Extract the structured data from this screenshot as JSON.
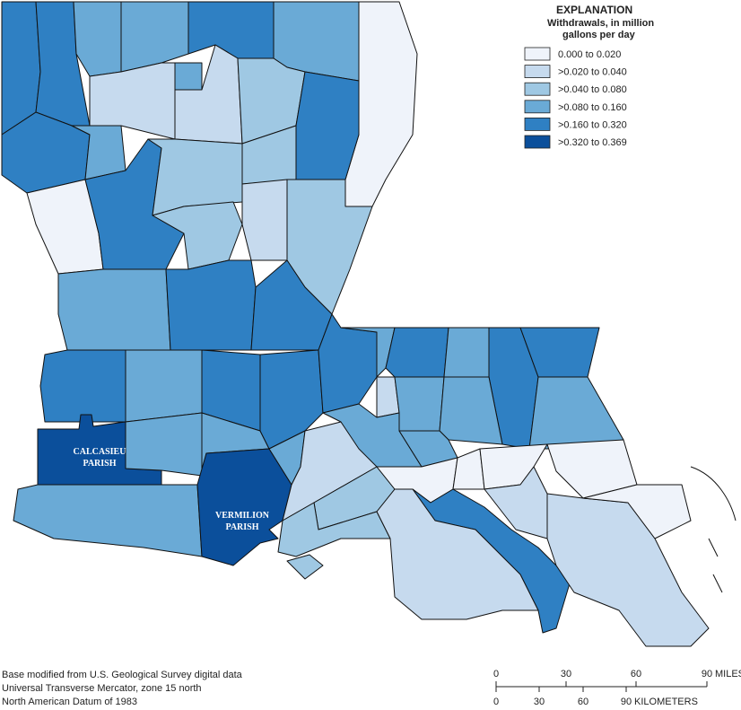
{
  "legend": {
    "title": "EXPLANATION",
    "subtitle_lines": [
      "Withdrawals, in million",
      "gallons per day"
    ],
    "classes": [
      {
        "label": "0.000 to 0.020",
        "color": "#eff3fa"
      },
      {
        "label": ">0.020 to 0.040",
        "color": "#c6daee"
      },
      {
        "label": ">0.040 to 0.080",
        "color": "#9fc8e3"
      },
      {
        "label": ">0.080 to 0.160",
        "color": "#6aaad6"
      },
      {
        "label": ">0.160 to 0.320",
        "color": "#2f80c3"
      },
      {
        "label": ">0.320 to 0.369",
        "color": "#0b4f9b"
      }
    ]
  },
  "callouts": [
    {
      "lines": [
        "CALCASIEU",
        "PARISH"
      ]
    },
    {
      "lines": [
        "VERMILION",
        "PARISH"
      ]
    }
  ],
  "credits": [
    "Base modified from U.S. Geological Survey digital data",
    "Universal Transverse Mercator, zone 15 north",
    "North American Datum of 1983"
  ],
  "scale": {
    "miles": {
      "ticks": [
        0,
        30,
        60,
        90
      ],
      "unit": "MILES"
    },
    "kilometers": {
      "ticks": [
        0,
        30,
        60,
        90
      ],
      "unit": "KILOMETERS"
    }
  }
}
